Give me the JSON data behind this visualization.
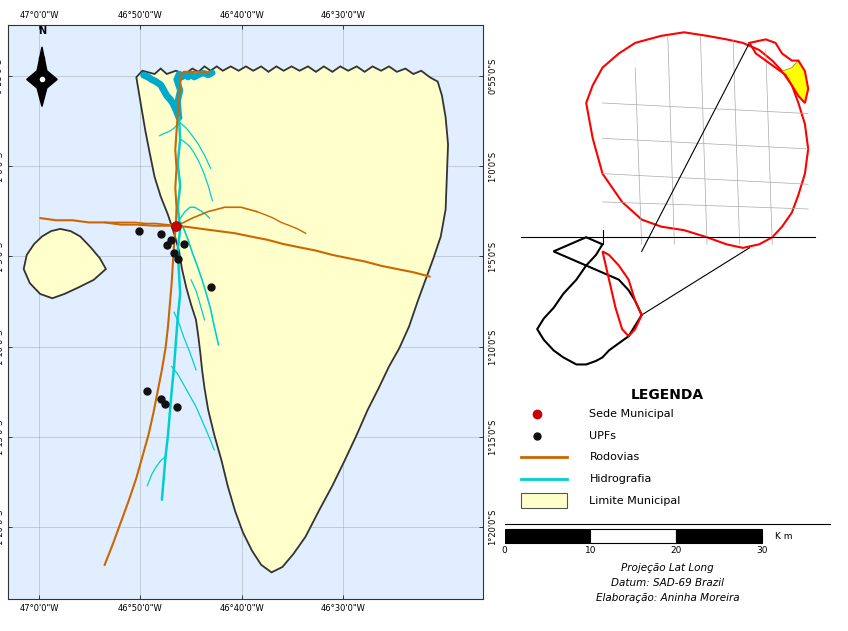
{
  "map_xlim": [
    -47.05,
    -46.27
  ],
  "map_ylim": [
    -1.4,
    -0.87
  ],
  "map_xticks": [
    -47.0,
    -46.8333,
    -46.6667,
    -46.5
  ],
  "map_yticks": [
    -0.9167,
    -1.0,
    -1.0833,
    -1.1667,
    -1.25,
    -1.3333
  ],
  "map_xtick_labels": [
    "47°0'0\"W",
    "46°50'0\"W",
    "46°40'0\"W",
    "46°30'0\"W"
  ],
  "map_ytick_labels": [
    "0°55'0\"S",
    "1°0'0\"S",
    "1°5'0\"S",
    "1°10'0\"S",
    "1°15'0\"S",
    "1°20'0\"S"
  ],
  "municipality_fill": "#FFFFCC",
  "municipality_edge": "#333333",
  "road_color": "#CD6600",
  "river_color": "#00CFCF",
  "river_wide_color": "#00AACC",
  "sede_color": "#CC0000",
  "upf_color": "#111111",
  "background_color": "#FFFFFF",
  "map_bg_color": "#E0EEFF",
  "legend_title": "LEGENDA",
  "projection_text": "Projeção Lat Long",
  "datum_text": "Datum: SAD-69 Brazil",
  "elaboration_text": "Elaboração: Aninha Moreira",
  "sede_point": [
    -46.775,
    -1.055
  ],
  "upf_points": [
    [
      -46.835,
      -1.06
    ],
    [
      -46.8,
      -1.063
    ],
    [
      -46.79,
      -1.073
    ],
    [
      -46.783,
      -1.068
    ],
    [
      -46.778,
      -1.08
    ],
    [
      -46.772,
      -1.086
    ],
    [
      -46.762,
      -1.072
    ],
    [
      -46.718,
      -1.112
    ],
    [
      -46.822,
      -1.208
    ],
    [
      -46.8,
      -1.215
    ],
    [
      -46.793,
      -1.22
    ],
    [
      -46.773,
      -1.222
    ]
  ],
  "muni_x": [
    -46.84,
    -46.83,
    -46.81,
    -46.8,
    -46.79,
    -46.775,
    -46.76,
    -46.748,
    -46.738,
    -46.728,
    -46.718,
    -46.708,
    -46.698,
    -46.685,
    -46.672,
    -46.66,
    -46.648,
    -46.635,
    -46.623,
    -46.61,
    -46.598,
    -46.585,
    -46.572,
    -46.558,
    -46.545,
    -46.532,
    -46.518,
    -46.505,
    -46.492,
    -46.478,
    -46.465,
    -46.452,
    -46.438,
    -46.425,
    -46.412,
    -46.398,
    -46.385,
    -46.372,
    -46.358,
    -46.345,
    -46.338,
    -46.332,
    -46.328,
    -46.33,
    -46.332,
    -46.34,
    -46.352,
    -46.365,
    -46.378,
    -46.392,
    -46.408,
    -46.425,
    -46.442,
    -46.46,
    -46.478,
    -46.498,
    -46.518,
    -46.54,
    -46.562,
    -46.582,
    -46.6,
    -46.618,
    -46.635,
    -46.65,
    -46.665,
    -46.678,
    -46.69,
    -46.7,
    -46.712,
    -46.722,
    -46.728,
    -46.732,
    -46.735,
    -46.738,
    -46.742,
    -46.75,
    -46.758,
    -46.765,
    -46.77,
    -46.778,
    -46.788,
    -46.8,
    -46.81,
    -46.818,
    -46.825,
    -46.832,
    -46.84
  ],
  "muni_y": [
    -0.918,
    -0.912,
    -0.915,
    -0.91,
    -0.915,
    -0.912,
    -0.915,
    -0.91,
    -0.913,
    -0.908,
    -0.912,
    -0.908,
    -0.912,
    -0.908,
    -0.912,
    -0.908,
    -0.912,
    -0.908,
    -0.913,
    -0.908,
    -0.912,
    -0.908,
    -0.912,
    -0.908,
    -0.913,
    -0.908,
    -0.913,
    -0.908,
    -0.912,
    -0.908,
    -0.913,
    -0.908,
    -0.912,
    -0.908,
    -0.913,
    -0.91,
    -0.915,
    -0.912,
    -0.918,
    -0.922,
    -0.935,
    -0.955,
    -0.98,
    -1.01,
    -1.04,
    -1.065,
    -1.085,
    -1.105,
    -1.125,
    -1.148,
    -1.168,
    -1.185,
    -1.205,
    -1.225,
    -1.248,
    -1.272,
    -1.295,
    -1.318,
    -1.342,
    -1.358,
    -1.37,
    -1.375,
    -1.368,
    -1.355,
    -1.338,
    -1.318,
    -1.295,
    -1.272,
    -1.248,
    -1.225,
    -1.205,
    -1.188,
    -1.172,
    -1.158,
    -1.142,
    -1.128,
    -1.112,
    -1.095,
    -1.078,
    -1.062,
    -1.045,
    -1.028,
    -1.01,
    -0.988,
    -0.968,
    -0.945,
    -0.918
  ],
  "left_arm_x": [
    -46.89,
    -46.91,
    -46.935,
    -46.958,
    -46.978,
    -46.998,
    -47.015,
    -47.025,
    -47.02,
    -47.008,
    -46.995,
    -46.98,
    -46.965,
    -46.948,
    -46.932,
    -46.915,
    -46.9,
    -46.89
  ],
  "left_arm_y": [
    -1.095,
    -1.105,
    -1.112,
    -1.118,
    -1.122,
    -1.118,
    -1.108,
    -1.095,
    -1.082,
    -1.072,
    -1.065,
    -1.06,
    -1.058,
    -1.06,
    -1.065,
    -1.075,
    -1.085,
    -1.095
  ],
  "northern_inlets_x": [
    [
      -46.84,
      -46.848,
      -46.855,
      -46.862,
      -46.855,
      -46.845,
      -46.838,
      -46.832
    ],
    [
      -46.78,
      -46.788,
      -46.795,
      -46.8,
      -46.793,
      -46.785,
      -46.778
    ],
    [
      -46.742,
      -46.748,
      -46.755,
      -46.762,
      -46.755,
      -46.745,
      -46.738
    ]
  ],
  "northern_inlets_y": [
    [
      -0.918,
      -0.928,
      -0.94,
      -0.952,
      -0.96,
      -0.952,
      -0.94,
      -0.93
    ],
    [
      -0.915,
      -0.928,
      -0.94,
      -0.952,
      -0.96,
      -0.95,
      -0.938
    ],
    [
      -0.912,
      -0.925,
      -0.938,
      -0.95,
      -0.96,
      -0.948,
      -0.935
    ]
  ]
}
